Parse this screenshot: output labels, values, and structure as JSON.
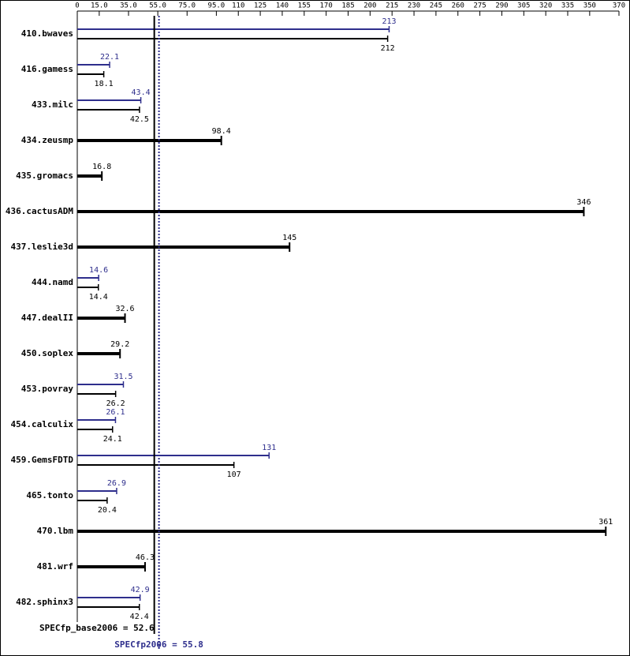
{
  "chart_data": {
    "type": "bar",
    "orientation": "horizontal",
    "categories": [
      "410.bwaves",
      "416.gamess",
      "433.milc",
      "434.zeusmp",
      "435.gromacs",
      "436.cactusADM",
      "437.leslie3d",
      "444.namd",
      "447.dealII",
      "450.soplex",
      "453.povray",
      "454.calculix",
      "459.GemsFDTD",
      "465.tonto",
      "470.lbm",
      "481.wrf",
      "482.sphinx3"
    ],
    "series": [
      {
        "name": "SPECfp2006",
        "color": "#2e2e8c",
        "values": [
          213,
          22.1,
          43.4,
          null,
          null,
          null,
          null,
          14.6,
          null,
          null,
          31.5,
          26.1,
          131,
          26.9,
          null,
          null,
          42.9
        ]
      },
      {
        "name": "SPECfp_base2006",
        "color": "#000000",
        "values": [
          212,
          18.1,
          42.5,
          98.4,
          16.8,
          346,
          145,
          14.4,
          32.6,
          29.2,
          26.2,
          24.1,
          107,
          20.4,
          361,
          46.3,
          42.4
        ]
      }
    ],
    "xlim": [
      0,
      370
    ],
    "xticks": [
      0,
      {
        "value": 15,
        "label": "15.0"
      },
      {
        "value": 35,
        "label": "35.0"
      },
      {
        "value": 55,
        "label": "55.0"
      },
      {
        "value": 75,
        "label": "75.0"
      },
      {
        "value": 95,
        "label": "95.0"
      },
      110,
      125,
      140,
      155,
      170,
      185,
      200,
      215,
      230,
      245,
      260,
      275,
      290,
      305,
      320,
      335,
      350,
      370
    ],
    "reference_lines": [
      {
        "label": "SPECfp_base2006 = 52.6",
        "value": 52.6,
        "color": "#000000",
        "dashed": false
      },
      {
        "label": "SPECfp2006 = 55.8",
        "value": 55.8,
        "color": "#2e2e8c",
        "dashed": true
      }
    ]
  }
}
